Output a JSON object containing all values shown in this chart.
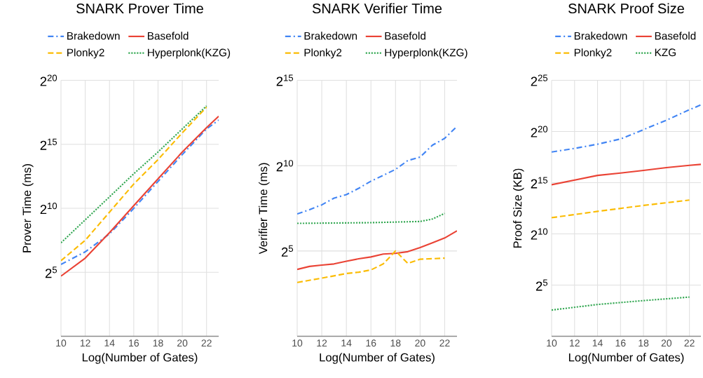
{
  "chart_data": [
    {
      "type": "line",
      "title": "SNARK Prover Time",
      "xlabel": "Log(Number of Gates)",
      "ylabel": "Prover Time (ms)",
      "log": "y",
      "grid": true,
      "legend": "top",
      "xlim": [
        10,
        23
      ],
      "xticks": [
        10,
        12,
        14,
        16,
        18,
        20,
        22
      ],
      "ylim": [
        1,
        1048576
      ],
      "yticks": [
        {
          "value": 32,
          "label": "2$^{5}$"
        },
        {
          "value": 1024,
          "label": "2$^{10}$"
        },
        {
          "value": 32768,
          "label": "2$^{15}$"
        },
        {
          "value": 1048576,
          "label": "2$^{20}$"
        }
      ],
      "series": [
        {
          "name": "Brakedown",
          "color": "#4285f4",
          "line_style": "dashdot",
          "x": [
            10,
            12,
            14,
            16,
            18,
            20,
            22,
            23
          ],
          "values": [
            49,
            97,
            256,
            1020,
            4390,
            18800,
            75300,
            122000
          ]
        },
        {
          "name": "Basefold",
          "color": "#ea4335",
          "line_style": "solid",
          "x": [
            10,
            12,
            14,
            16,
            18,
            20,
            22,
            23
          ],
          "values": [
            26,
            69,
            274,
            1180,
            5040,
            21600,
            80700,
            150000
          ]
        },
        {
          "name": "Plonky2",
          "color": "#fbbc04",
          "line_style": "dashed",
          "x": [
            10,
            12,
            14,
            16,
            18,
            20,
            22
          ],
          "values": [
            60,
            181,
            832,
            3820,
            14300,
            61100,
            245000
          ]
        },
        {
          "name": "Hyperplonk(KZG)",
          "color": "#34a853",
          "line_style": "dotted",
          "x": [
            10,
            12,
            14,
            16,
            18,
            20,
            22
          ],
          "values": [
            158,
            549,
            1910,
            6650,
            21600,
            75300,
            262000
          ]
        }
      ]
    },
    {
      "type": "line",
      "title": "SNARK Verifier Time",
      "xlabel": "Log(Number of Gates)",
      "ylabel": "Verifier Time (ms)",
      "log": "y",
      "grid": true,
      "legend": "top",
      "xlim": [
        10,
        23
      ],
      "xticks": [
        10,
        12,
        14,
        16,
        18,
        20,
        22
      ],
      "ylim": [
        1,
        32768
      ],
      "yticks": [
        {
          "value": 32,
          "label": "2$^{5}$"
        },
        {
          "value": 1024,
          "label": "2$^{10}$"
        },
        {
          "value": 32768,
          "label": "2$^{15}$"
        }
      ],
      "series": [
        {
          "name": "Brakedown",
          "color": "#4285f4",
          "line_style": "dashdot",
          "x": [
            10,
            11,
            12,
            13,
            14,
            15,
            16,
            17,
            18,
            19,
            20,
            21,
            22,
            23
          ],
          "values": [
            144,
            171,
            208,
            274,
            315,
            407,
            545,
            690,
            879,
            1260,
            1450,
            2350,
            3100,
            5040
          ]
        },
        {
          "name": "Basefold",
          "color": "#ea4335",
          "line_style": "solid",
          "x": [
            10,
            11,
            12,
            13,
            14,
            15,
            16,
            17,
            18,
            19,
            20,
            21,
            22,
            23
          ],
          "values": [
            15.1,
            17.1,
            18.0,
            18.9,
            21.1,
            23.3,
            25.1,
            28.2,
            29.0,
            31.1,
            36.8,
            44.6,
            54.2,
            72.5
          ]
        },
        {
          "name": "Plonky2",
          "color": "#fbbc04",
          "line_style": "dashed",
          "x": [
            10,
            12,
            14,
            15,
            16,
            17,
            18,
            19,
            20,
            22
          ],
          "values": [
            8.9,
            10.6,
            12.8,
            13.5,
            14.8,
            18.9,
            32,
            19.3,
            22.9,
            23.9
          ]
        },
        {
          "name": "Hyperplonk(KZG)",
          "color": "#34a853",
          "line_style": "dotted",
          "x": [
            10,
            16,
            20,
            21,
            22
          ],
          "values": [
            98,
            101,
            106,
            117,
            147
          ]
        }
      ]
    },
    {
      "type": "line",
      "title": "SNARK Proof Size",
      "xlabel": "Log(Number of Gates)",
      "ylabel": "Proof Size (KB)",
      "log": "y",
      "grid": true,
      "legend": "top",
      "xlim": [
        10,
        23
      ],
      "xticks": [
        10,
        12,
        14,
        16,
        18,
        20,
        22
      ],
      "ylim": [
        1,
        33554432
      ],
      "yticks": [
        {
          "value": 32,
          "label": "2$^{5}$"
        },
        {
          "value": 1024,
          "label": "2$^{10}$"
        },
        {
          "value": 32768,
          "label": "2$^{15}$"
        },
        {
          "value": 1048576,
          "label": "2$^{20}$"
        },
        {
          "value": 33554432,
          "label": "2$^{25}$"
        }
      ],
      "series": [
        {
          "name": "Brakedown",
          "color": "#4285f4",
          "line_style": "dashdot",
          "x": [
            10,
            12,
            14,
            16,
            18,
            20,
            22,
            23
          ],
          "values": [
            262000,
            334000,
            444000,
            632000,
            1190000,
            2250000,
            4590000,
            6360000
          ]
        },
        {
          "name": "Basefold",
          "color": "#ea4335",
          "line_style": "solid",
          "x": [
            10,
            14,
            16,
            18,
            20,
            22,
            23
          ],
          "values": [
            28500,
            53600,
            62900,
            75300,
            90800,
            106000,
            113000
          ]
        },
        {
          "name": "Plonky2",
          "color": "#fbbc04",
          "line_style": "dashed",
          "x": [
            10,
            14,
            18,
            22
          ],
          "values": [
            3060,
            4700,
            7030,
            10100
          ]
        },
        {
          "name": "KZG",
          "color": "#34a853",
          "line_style": "dotted",
          "x": [
            10,
            14,
            18,
            22
          ],
          "values": [
            5.9,
            8.6,
            11.2,
            14.2
          ]
        }
      ]
    }
  ]
}
